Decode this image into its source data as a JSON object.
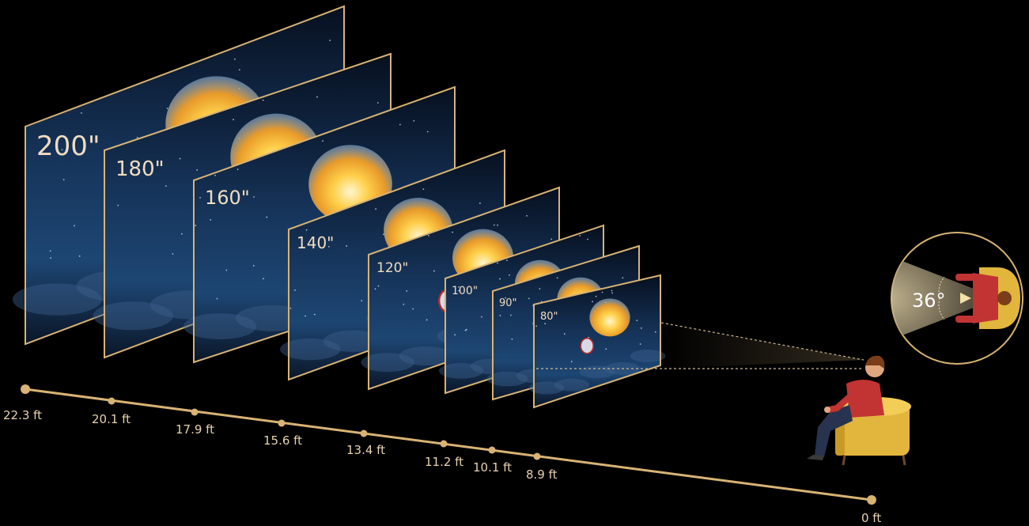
{
  "screens": [
    {
      "size": "200\""
    },
    {
      "size": "180\""
    },
    {
      "size": "160\""
    },
    {
      "size": "140\""
    },
    {
      "size": "120\""
    },
    {
      "size": "100\""
    },
    {
      "size": "90\""
    },
    {
      "size": "80\""
    }
  ],
  "distances": [
    "22.3 ft",
    "20.1 ft",
    "17.9 ft",
    "15.6 ft",
    "13.4 ft",
    "11.2 ft",
    "10.1 ft",
    "8.9 ft",
    "0 ft"
  ],
  "viewing_angle": "36°",
  "colors": {
    "gold": "#d8b374",
    "background": "#000000",
    "sky": "#1a3a63"
  }
}
